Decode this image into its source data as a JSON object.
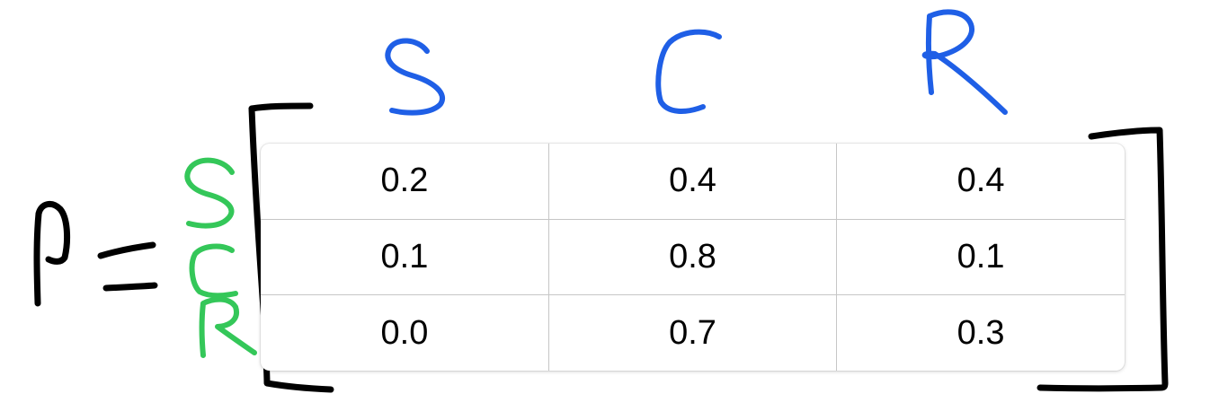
{
  "diagram": {
    "symbol": "P",
    "operator": "=",
    "column_labels": [
      "S",
      "C",
      "R"
    ],
    "row_labels": [
      "S",
      "C",
      "R"
    ],
    "matrix": [
      [
        "0.2",
        "0.4",
        "0.4"
      ],
      [
        "0.1",
        "0.8",
        "0.1"
      ],
      [
        "0.0",
        "0.7",
        "0.3"
      ]
    ]
  },
  "colors": {
    "symbol_ink": "#000000",
    "column_label_ink": "#1f5fe6",
    "row_label_ink": "#34c759",
    "bracket_ink": "#000000",
    "grid_line": "#c6c6c6"
  }
}
